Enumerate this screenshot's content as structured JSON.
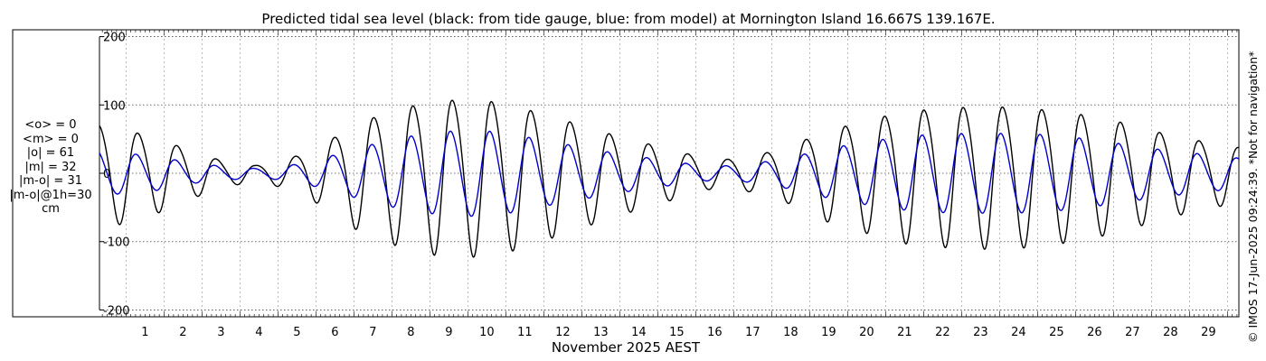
{
  "chart_data": {
    "type": "line",
    "title": "Predicted tidal sea level (black: from tide gauge, blue: from model) at Mornington Island 16.667S 139.167E.",
    "xlabel": "November 2025 AEST",
    "ylabel": "",
    "xlim": [
      0.3,
      30.3
    ],
    "ylim": [
      -210,
      210
    ],
    "x_ticks": [
      1,
      2,
      3,
      4,
      5,
      6,
      7,
      8,
      9,
      10,
      11,
      12,
      13,
      14,
      15,
      16,
      17,
      18,
      19,
      20,
      21,
      22,
      23,
      24,
      25,
      26,
      27,
      28,
      29
    ],
    "x_tick_labels": [
      "1",
      "2",
      "3",
      "4",
      "5",
      "6",
      "7",
      "8",
      "9",
      "10",
      "11",
      "12",
      "13",
      "14",
      "15",
      "16",
      "17",
      "18",
      "19",
      "20",
      "21",
      "22",
      "23",
      "24",
      "25",
      "26",
      "27",
      "28",
      "29"
    ],
    "y_ticks": [
      -200,
      -100,
      0,
      100,
      200
    ],
    "y_tick_labels": [
      "-200",
      "-100",
      "0",
      "100",
      "200"
    ],
    "grid": true,
    "series_color_gauge": "#000000",
    "series_color_model": "#0000cc",
    "series": [
      {
        "x": [
          0.3,
          0.8,
          1.8,
          2.7,
          3.6,
          4.4,
          5.2,
          6.2,
          7.0,
          7.9,
          8.9,
          9.9,
          10.9,
          11.8,
          12.8,
          13.8,
          14.8,
          15.8,
          16.5,
          17.4,
          18.4,
          19.4,
          20.4,
          21.4,
          22.3,
          23.3,
          24.3,
          25.3,
          26.3,
          27.3,
          28.3,
          29.3,
          30.3
        ],
        "amplitude": [
          75,
          70,
          55,
          35,
          18,
          12,
          20,
          45,
          75,
          95,
          110,
          115,
          110,
          95,
          78,
          60,
          45,
          30,
          20,
          25,
          40,
          65,
          80,
          95,
          100,
          103,
          103,
          98,
          90,
          78,
          62,
          50,
          40
        ]
      },
      {
        "x": [
          0.3,
          0.8,
          1.8,
          2.7,
          3.6,
          4.4,
          5.2,
          6.2,
          7.0,
          7.9,
          8.9,
          9.9,
          10.9,
          11.8,
          12.8,
          13.8,
          14.8,
          15.8,
          16.5,
          17.4,
          18.4,
          19.4,
          20.4,
          21.4,
          22.3,
          23.3,
          24.3,
          25.3,
          26.3,
          27.3,
          28.3,
          29.3,
          30.3
        ],
        "amplitude": [
          33,
          30,
          25,
          15,
          10,
          7,
          10,
          22,
          35,
          48,
          58,
          63,
          60,
          50,
          40,
          30,
          22,
          14,
          10,
          13,
          22,
          35,
          45,
          53,
          57,
          58,
          58,
          56,
          50,
          42,
          34,
          28,
          22
        ]
      }
    ]
  },
  "stats": {
    "mean_o": "<o> = 0",
    "mean_m": "<m> = 0",
    "abs_o": "|o| = 61",
    "abs_m": "|m| = 32",
    "abs_diff": "|m-o| = 31",
    "abs_diff_1h": "|m-o|@1h=30",
    "unit": "cm"
  },
  "copyright": "© IMOS 17-Jun-2025 09:24:39. *Not for navigation*"
}
